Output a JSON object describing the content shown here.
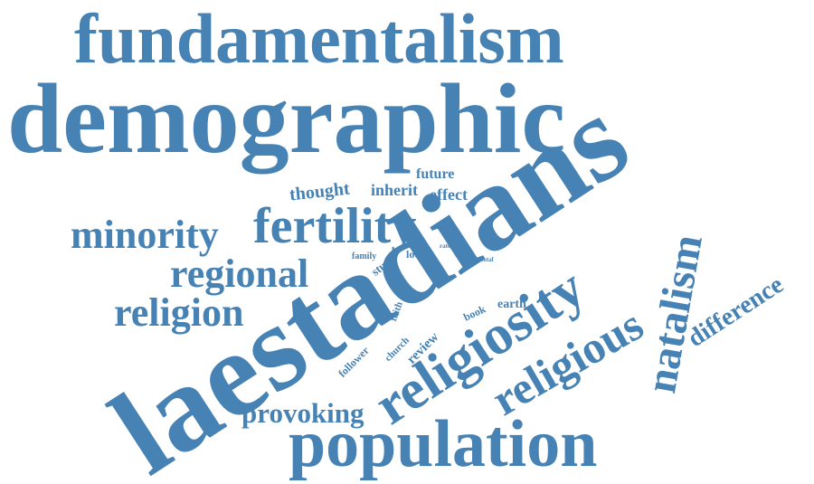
{
  "word_color": "#4682b4",
  "background": "#ffffff",
  "words": {
    "fundamentalism": "fundamentalism",
    "demographic": "demographic",
    "laestadians": "laestadians",
    "population": "population",
    "religiosity": "religiosity",
    "religious": "religious",
    "natalism": "natalism",
    "fertility": "fertility",
    "minority": "minority",
    "regional": "regional",
    "religion": "religion",
    "provoking": "provoking",
    "difference": "difference",
    "thought": "thought",
    "inherit": "inherit",
    "effect": "effect",
    "future": "future",
    "family": "family",
    "study": "study",
    "look": "look",
    "rate": "rate",
    "total": "total",
    "book": "book",
    "earth": "earth",
    "faith": "faith",
    "church": "church",
    "follower": "follower",
    "review": "review"
  }
}
